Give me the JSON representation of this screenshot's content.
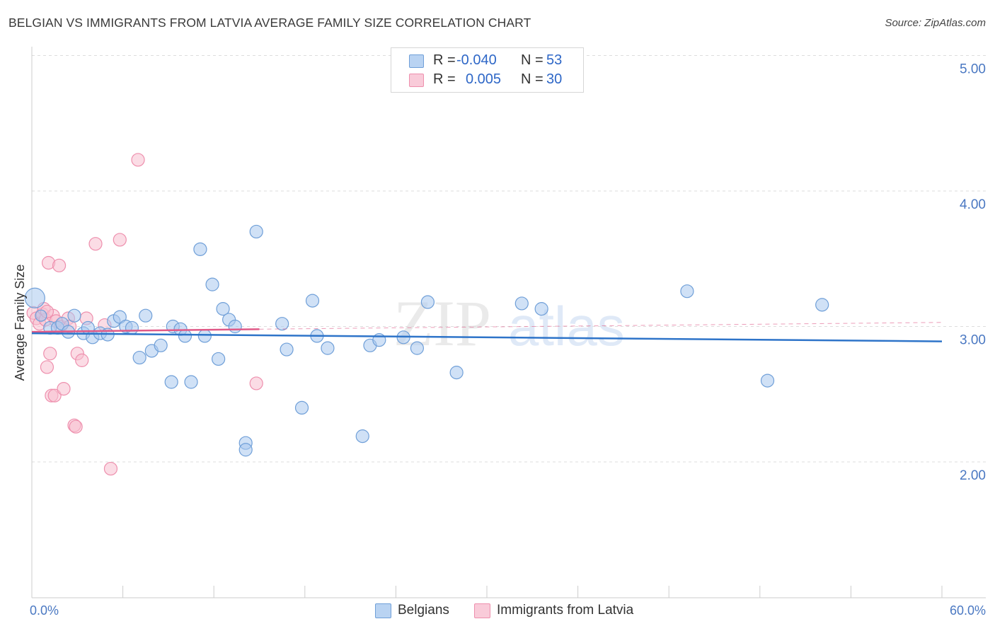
{
  "title": "BELGIAN VS IMMIGRANTS FROM LATVIA AVERAGE FAMILY SIZE CORRELATION CHART",
  "source": "Source: ZipAtlas.com",
  "watermark": {
    "zip": "ZIP",
    "atlas": "atlas"
  },
  "legend": {
    "r_label": "R =",
    "n_label": "N =",
    "belgians": {
      "r": "-0.040",
      "n": "53"
    },
    "latvia": {
      "r": "0.005",
      "n": "30"
    }
  },
  "bottom_legend": {
    "belgians": "Belgians",
    "latvia": "Immigrants from Latvia"
  },
  "colors": {
    "blue_fill": "#aac8ee",
    "blue_stroke": "#6f9fd8",
    "blue_line": "#2e74c9",
    "pink_fill": "#f7bfd0",
    "pink_stroke": "#ee8fad",
    "pink_line": "#e05a88",
    "grid": "#dddddd",
    "tick_text": "#4a78c2"
  },
  "chart_data": {
    "type": "scatter",
    "title": "BELGIAN VS IMMIGRANTS FROM LATVIA AVERAGE FAMILY SIZE CORRELATION CHART",
    "xlabel": "",
    "ylabel": "Average Family Size",
    "xlim": [
      0,
      60
    ],
    "ylim": [
      1.0,
      5.1
    ],
    "x_tick_labels": [
      "0.0%",
      "60.0%"
    ],
    "y_ticks": [
      2.0,
      3.0,
      4.0,
      5.0
    ],
    "y_tick_labels": [
      "2.00",
      "3.00",
      "4.00",
      "5.00"
    ],
    "series": [
      {
        "name": "Belgians",
        "r": -0.04,
        "n": 53,
        "trend": {
          "x": [
            0,
            60
          ],
          "y": [
            2.95,
            2.89
          ],
          "style": "solid"
        },
        "points": [
          [
            0.2,
            3.21,
            14
          ],
          [
            1.2,
            2.99,
            9
          ],
          [
            1.7,
            2.99,
            9
          ],
          [
            2.0,
            3.02,
            9
          ],
          [
            2.4,
            2.96,
            9
          ],
          [
            2.8,
            3.08,
            9
          ],
          [
            3.4,
            2.95,
            9
          ],
          [
            3.7,
            2.99,
            9
          ],
          [
            4.0,
            2.92,
            9
          ],
          [
            4.5,
            2.95,
            9
          ],
          [
            5.0,
            2.94,
            9
          ],
          [
            5.4,
            3.04,
            9
          ],
          [
            5.8,
            3.07,
            9
          ],
          [
            6.2,
            3.0,
            9
          ],
          [
            6.6,
            2.99,
            9
          ],
          [
            7.1,
            2.77,
            9
          ],
          [
            7.5,
            3.08,
            9
          ],
          [
            7.9,
            2.82,
            9
          ],
          [
            8.5,
            2.86,
            9
          ],
          [
            9.2,
            2.59,
            9
          ],
          [
            9.3,
            3.0,
            9
          ],
          [
            9.8,
            2.98,
            9
          ],
          [
            10.1,
            2.93,
            9
          ],
          [
            10.5,
            2.59,
            9
          ],
          [
            11.1,
            3.57,
            9
          ],
          [
            11.4,
            2.93,
            9
          ],
          [
            11.9,
            3.31,
            9
          ],
          [
            12.3,
            2.76,
            9
          ],
          [
            12.6,
            3.13,
            9
          ],
          [
            13.0,
            3.05,
            9
          ],
          [
            13.4,
            3.0,
            9
          ],
          [
            14.1,
            2.14,
            9
          ],
          [
            14.1,
            2.09,
            9
          ],
          [
            14.8,
            3.7,
            9
          ],
          [
            16.5,
            3.02,
            9
          ],
          [
            16.8,
            2.83,
            9
          ],
          [
            17.8,
            2.4,
            9
          ],
          [
            18.5,
            3.19,
            9
          ],
          [
            18.8,
            2.93,
            9
          ],
          [
            19.5,
            2.84,
            9
          ],
          [
            21.8,
            2.19,
            9
          ],
          [
            22.3,
            2.86,
            9
          ],
          [
            22.9,
            2.9,
            9
          ],
          [
            24.5,
            2.92,
            9
          ],
          [
            25.4,
            2.84,
            9
          ],
          [
            26.1,
            3.18,
            9
          ],
          [
            28.0,
            2.66,
            9
          ],
          [
            32.3,
            3.17,
            9
          ],
          [
            33.6,
            3.13,
            9
          ],
          [
            43.2,
            3.26,
            9
          ],
          [
            48.5,
            2.6,
            9
          ],
          [
            52.1,
            3.16,
            9
          ],
          [
            0.6,
            3.08,
            8
          ]
        ]
      },
      {
        "name": "Immigrants from Latvia",
        "r": 0.005,
        "n": 30,
        "trend": {
          "x": [
            0,
            15.0
          ],
          "y": [
            2.96,
            2.98
          ],
          "style": "solid",
          "extended_dashed_to": [
            60,
            3.03
          ]
        },
        "points": [
          [
            0.1,
            3.1,
            9
          ],
          [
            0.3,
            3.06,
            9
          ],
          [
            0.5,
            3.02,
            9
          ],
          [
            0.7,
            3.09,
            9
          ],
          [
            0.8,
            3.13,
            9
          ],
          [
            0.9,
            3.05,
            9
          ],
          [
            1.0,
            2.7,
            9
          ],
          [
            1.1,
            3.47,
            9
          ],
          [
            1.2,
            2.8,
            9
          ],
          [
            1.3,
            2.49,
            9
          ],
          [
            1.4,
            3.08,
            9
          ],
          [
            1.5,
            2.49,
            9
          ],
          [
            1.6,
            3.04,
            9
          ],
          [
            1.8,
            3.45,
            9
          ],
          [
            1.9,
            3.0,
            9
          ],
          [
            2.1,
            2.54,
            9
          ],
          [
            2.4,
            3.06,
            9
          ],
          [
            2.5,
            3.0,
            9
          ],
          [
            2.8,
            2.27,
            9
          ],
          [
            2.9,
            2.26,
            9
          ],
          [
            3.0,
            2.8,
            9
          ],
          [
            3.3,
            2.75,
            9
          ],
          [
            3.6,
            3.06,
            9
          ],
          [
            4.2,
            3.61,
            9
          ],
          [
            4.8,
            3.01,
            9
          ],
          [
            5.2,
            1.95,
            9
          ],
          [
            5.8,
            3.64,
            9
          ],
          [
            7.0,
            4.23,
            9
          ],
          [
            14.8,
            2.58,
            9
          ],
          [
            1.0,
            3.11,
            9
          ]
        ]
      }
    ]
  }
}
